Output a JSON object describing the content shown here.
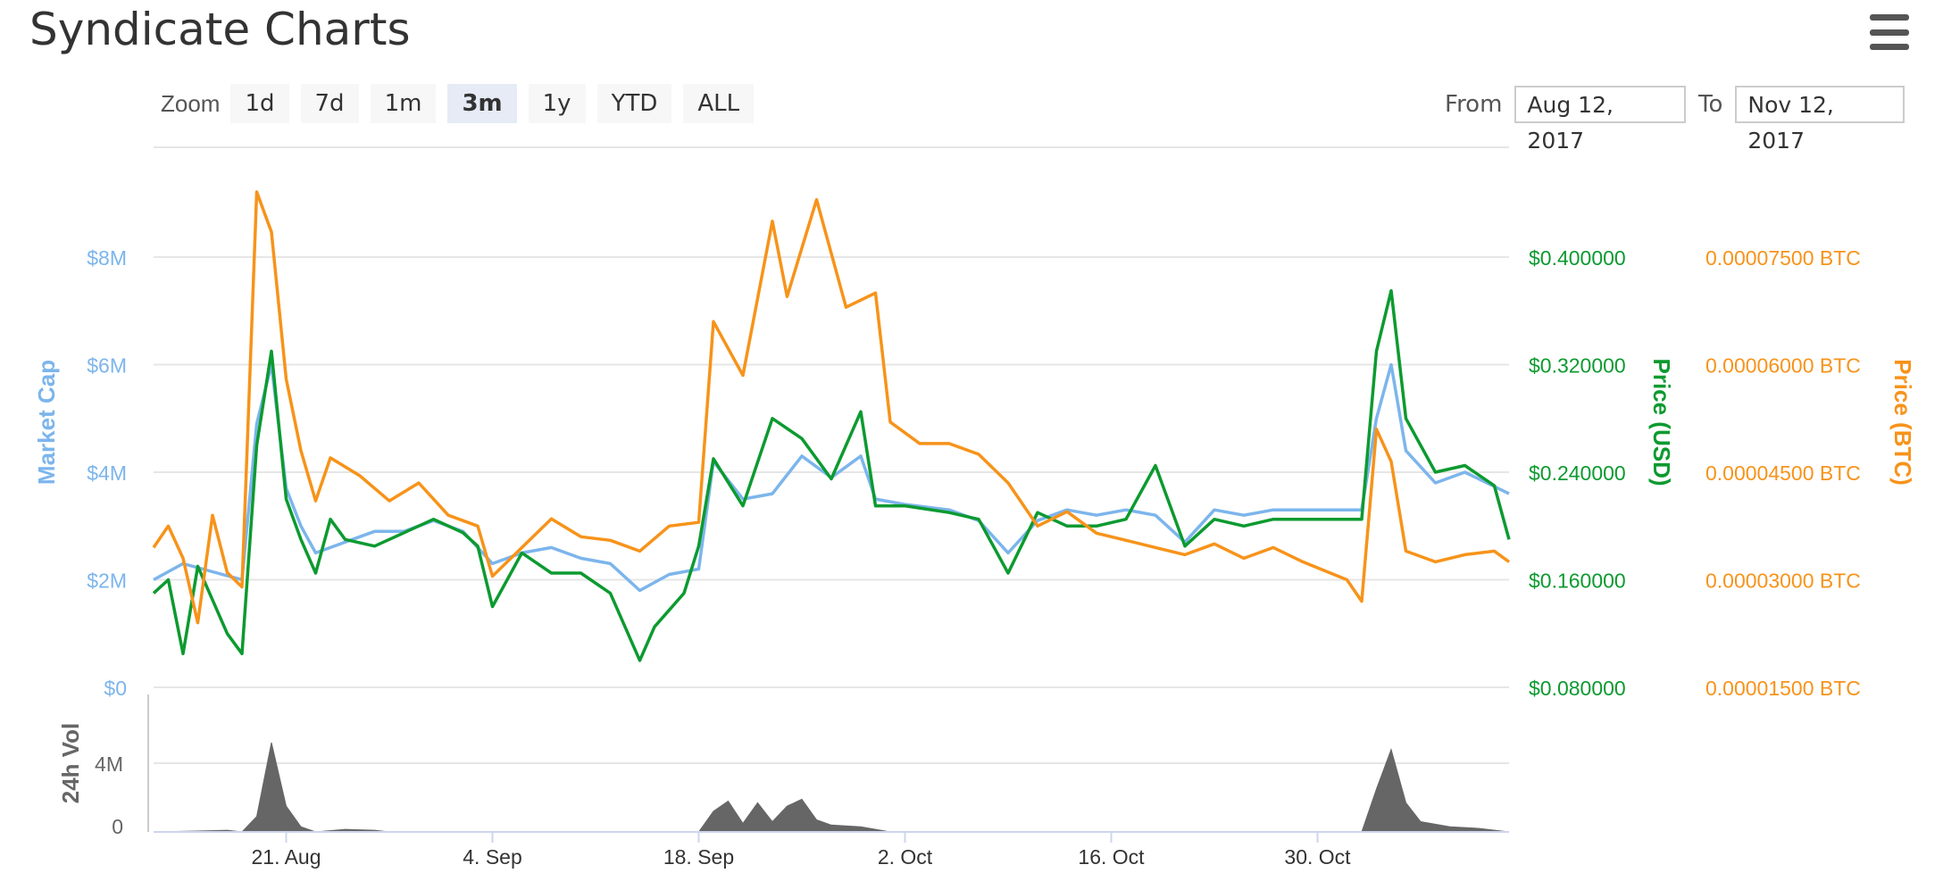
{
  "title": "Syndicate Charts",
  "menu_icon": "hamburger-menu-icon",
  "zoom": {
    "label": "Zoom",
    "buttons": [
      "1d",
      "7d",
      "1m",
      "3m",
      "1y",
      "YTD",
      "ALL"
    ],
    "active": "3m"
  },
  "range": {
    "from_label": "From",
    "from_value": "Aug 12, 2017",
    "to_label": "To",
    "to_value": "Nov 12, 2017"
  },
  "colors": {
    "market_cap": "#7cb5ec",
    "price_usd": "#0c9a30",
    "price_btc": "#f7931a",
    "volume": "#666666",
    "grid": "#e6e6e6"
  },
  "chart_data": {
    "type": "line",
    "x_start": "2017-08-12",
    "x_end": "2017-11-12",
    "x_tick_labels": [
      "21. Aug",
      "4. Sep",
      "18. Sep",
      "2. Oct",
      "16. Oct",
      "30. Oct"
    ],
    "x_tick_dates": [
      "2017-08-21",
      "2017-09-04",
      "2017-09-18",
      "2017-10-02",
      "2017-10-16",
      "2017-10-30"
    ],
    "axes": {
      "market_cap": {
        "title": "Market Cap",
        "ticks": [
          "$0",
          "$2M",
          "$4M",
          "$6M",
          "$8M"
        ],
        "range": [
          0,
          8000000
        ]
      },
      "price_usd": {
        "title": "Price (USD)",
        "ticks": [
          "$0.080000",
          "$0.160000",
          "$0.240000",
          "$0.320000",
          "$0.400000"
        ],
        "range": [
          0.08,
          0.4
        ]
      },
      "price_btc": {
        "title": "Price (BTC)",
        "ticks": [
          "0.00001500 BTC",
          "0.00003000 BTC",
          "0.00004500 BTC",
          "0.00006000 BTC",
          "0.00007500 BTC"
        ],
        "range": [
          1.5e-05,
          7.5e-05
        ]
      },
      "volume": {
        "title": "24h Vol",
        "ticks": [
          "0",
          "4M"
        ],
        "range": [
          0,
          4000000
        ]
      }
    },
    "series": [
      {
        "name": "Market Cap",
        "axis": "market_cap",
        "points": [
          [
            "2017-08-12",
            2000000
          ],
          [
            "2017-08-14",
            2300000
          ],
          [
            "2017-08-16",
            2150000
          ],
          [
            "2017-08-18",
            2000000
          ],
          [
            "2017-08-19",
            4900000
          ],
          [
            "2017-08-20",
            6000000
          ],
          [
            "2017-08-21",
            3700000
          ],
          [
            "2017-08-22",
            3000000
          ],
          [
            "2017-08-23",
            2500000
          ],
          [
            "2017-08-25",
            2700000
          ],
          [
            "2017-08-27",
            2900000
          ],
          [
            "2017-08-29",
            2900000
          ],
          [
            "2017-08-31",
            3100000
          ],
          [
            "2017-09-02",
            2900000
          ],
          [
            "2017-09-04",
            2300000
          ],
          [
            "2017-09-06",
            2500000
          ],
          [
            "2017-09-08",
            2600000
          ],
          [
            "2017-09-10",
            2400000
          ],
          [
            "2017-09-12",
            2300000
          ],
          [
            "2017-09-14",
            1800000
          ],
          [
            "2017-09-16",
            2100000
          ],
          [
            "2017-09-18",
            2200000
          ],
          [
            "2017-09-19",
            4200000
          ],
          [
            "2017-09-21",
            3500000
          ],
          [
            "2017-09-23",
            3600000
          ],
          [
            "2017-09-25",
            4300000
          ],
          [
            "2017-09-27",
            3900000
          ],
          [
            "2017-09-29",
            4300000
          ],
          [
            "2017-09-30",
            3500000
          ],
          [
            "2017-10-02",
            3400000
          ],
          [
            "2017-10-05",
            3300000
          ],
          [
            "2017-10-07",
            3100000
          ],
          [
            "2017-10-09",
            2500000
          ],
          [
            "2017-10-11",
            3100000
          ],
          [
            "2017-10-13",
            3300000
          ],
          [
            "2017-10-15",
            3200000
          ],
          [
            "2017-10-17",
            3300000
          ],
          [
            "2017-10-19",
            3200000
          ],
          [
            "2017-10-21",
            2700000
          ],
          [
            "2017-10-23",
            3300000
          ],
          [
            "2017-10-25",
            3200000
          ],
          [
            "2017-10-27",
            3300000
          ],
          [
            "2017-10-29",
            3300000
          ],
          [
            "2017-11-02",
            3300000
          ],
          [
            "2017-11-03",
            5000000
          ],
          [
            "2017-11-04",
            6000000
          ],
          [
            "2017-11-05",
            4400000
          ],
          [
            "2017-11-07",
            3800000
          ],
          [
            "2017-11-09",
            4000000
          ],
          [
            "2017-11-12",
            3600000
          ]
        ]
      },
      {
        "name": "Price (USD)",
        "axis": "price_usd",
        "points": [
          [
            "2017-08-12",
            0.15
          ],
          [
            "2017-08-13",
            0.16
          ],
          [
            "2017-08-14",
            0.105
          ],
          [
            "2017-08-15",
            0.17
          ],
          [
            "2017-08-16",
            0.145
          ],
          [
            "2017-08-17",
            0.12
          ],
          [
            "2017-08-18",
            0.105
          ],
          [
            "2017-08-19",
            0.26
          ],
          [
            "2017-08-20",
            0.33
          ],
          [
            "2017-08-21",
            0.22
          ],
          [
            "2017-08-22",
            0.19
          ],
          [
            "2017-08-23",
            0.165
          ],
          [
            "2017-08-24",
            0.205
          ],
          [
            "2017-08-25",
            0.19
          ],
          [
            "2017-08-27",
            0.185
          ],
          [
            "2017-08-29",
            0.195
          ],
          [
            "2017-08-31",
            0.205
          ],
          [
            "2017-09-02",
            0.195
          ],
          [
            "2017-09-03",
            0.185
          ],
          [
            "2017-09-04",
            0.14
          ],
          [
            "2017-09-06",
            0.18
          ],
          [
            "2017-09-08",
            0.165
          ],
          [
            "2017-09-10",
            0.165
          ],
          [
            "2017-09-12",
            0.15
          ],
          [
            "2017-09-14",
            0.1
          ],
          [
            "2017-09-15",
            0.125
          ],
          [
            "2017-09-17",
            0.15
          ],
          [
            "2017-09-18",
            0.185
          ],
          [
            "2017-09-19",
            0.25
          ],
          [
            "2017-09-21",
            0.215
          ],
          [
            "2017-09-23",
            0.28
          ],
          [
            "2017-09-25",
            0.265
          ],
          [
            "2017-09-27",
            0.235
          ],
          [
            "2017-09-29",
            0.285
          ],
          [
            "2017-09-30",
            0.215
          ],
          [
            "2017-10-02",
            0.215
          ],
          [
            "2017-10-05",
            0.21
          ],
          [
            "2017-10-07",
            0.205
          ],
          [
            "2017-10-09",
            0.165
          ],
          [
            "2017-10-11",
            0.21
          ],
          [
            "2017-10-13",
            0.2
          ],
          [
            "2017-10-15",
            0.2
          ],
          [
            "2017-10-17",
            0.205
          ],
          [
            "2017-10-19",
            0.245
          ],
          [
            "2017-10-21",
            0.185
          ],
          [
            "2017-10-23",
            0.205
          ],
          [
            "2017-10-25",
            0.2
          ],
          [
            "2017-10-27",
            0.205
          ],
          [
            "2017-10-29",
            0.205
          ],
          [
            "2017-11-02",
            0.205
          ],
          [
            "2017-11-03",
            0.33
          ],
          [
            "2017-11-04",
            0.375
          ],
          [
            "2017-11-05",
            0.28
          ],
          [
            "2017-11-07",
            0.24
          ],
          [
            "2017-11-09",
            0.245
          ],
          [
            "2017-11-11",
            0.23
          ],
          [
            "2017-11-12",
            0.19
          ]
        ]
      },
      {
        "name": "Price (BTC)",
        "axis": "price_btc",
        "points": [
          [
            "2017-08-12",
            3.45e-05
          ],
          [
            "2017-08-13",
            3.75e-05
          ],
          [
            "2017-08-14",
            3.3e-05
          ],
          [
            "2017-08-15",
            2.4e-05
          ],
          [
            "2017-08-16",
            3.9e-05
          ],
          [
            "2017-08-17",
            3.1e-05
          ],
          [
            "2017-08-18",
            2.9e-05
          ],
          [
            "2017-08-19",
            8.5e-05
          ],
          [
            "2017-08-20",
            7.85e-05
          ],
          [
            "2017-08-21",
            5.8e-05
          ],
          [
            "2017-08-22",
            4.8e-05
          ],
          [
            "2017-08-23",
            4.1e-05
          ],
          [
            "2017-08-24",
            4.7e-05
          ],
          [
            "2017-08-26",
            4.45e-05
          ],
          [
            "2017-08-28",
            4.1e-05
          ],
          [
            "2017-08-30",
            4.35e-05
          ],
          [
            "2017-09-01",
            3.9e-05
          ],
          [
            "2017-09-03",
            3.75e-05
          ],
          [
            "2017-09-04",
            3.05e-05
          ],
          [
            "2017-09-06",
            3.45e-05
          ],
          [
            "2017-09-08",
            3.85e-05
          ],
          [
            "2017-09-10",
            3.6e-05
          ],
          [
            "2017-09-12",
            3.55e-05
          ],
          [
            "2017-09-14",
            3.4e-05
          ],
          [
            "2017-09-16",
            3.75e-05
          ],
          [
            "2017-09-18",
            3.8e-05
          ],
          [
            "2017-09-19",
            6.6e-05
          ],
          [
            "2017-09-21",
            5.85e-05
          ],
          [
            "2017-09-23",
            8e-05
          ],
          [
            "2017-09-24",
            6.95e-05
          ],
          [
            "2017-09-26",
            8.3e-05
          ],
          [
            "2017-09-28",
            6.8e-05
          ],
          [
            "2017-09-30",
            7e-05
          ],
          [
            "2017-10-01",
            5.2e-05
          ],
          [
            "2017-10-03",
            4.9e-05
          ],
          [
            "2017-10-05",
            4.9e-05
          ],
          [
            "2017-10-07",
            4.75e-05
          ],
          [
            "2017-10-09",
            4.35e-05
          ],
          [
            "2017-10-11",
            3.75e-05
          ],
          [
            "2017-10-13",
            3.95e-05
          ],
          [
            "2017-10-15",
            3.65e-05
          ],
          [
            "2017-10-17",
            3.55e-05
          ],
          [
            "2017-10-19",
            3.45e-05
          ],
          [
            "2017-10-21",
            3.35e-05
          ],
          [
            "2017-10-23",
            3.5e-05
          ],
          [
            "2017-10-25",
            3.3e-05
          ],
          [
            "2017-10-27",
            3.45e-05
          ],
          [
            "2017-10-29",
            3.25e-05
          ],
          [
            "2017-11-01",
            3e-05
          ],
          [
            "2017-11-02",
            2.7e-05
          ],
          [
            "2017-11-03",
            5.1e-05
          ],
          [
            "2017-11-04",
            4.65e-05
          ],
          [
            "2017-11-05",
            3.4e-05
          ],
          [
            "2017-11-07",
            3.25e-05
          ],
          [
            "2017-11-09",
            3.35e-05
          ],
          [
            "2017-11-11",
            3.4e-05
          ],
          [
            "2017-11-12",
            3.25e-05
          ]
        ]
      },
      {
        "name": "24h Vol",
        "axis": "volume",
        "points": [
          [
            "2017-08-12",
            0
          ],
          [
            "2017-08-15",
            50000
          ],
          [
            "2017-08-17",
            100000
          ],
          [
            "2017-08-18",
            0
          ],
          [
            "2017-08-19",
            900000
          ],
          [
            "2017-08-20",
            5200000
          ],
          [
            "2017-08-21",
            1500000
          ],
          [
            "2017-08-22",
            300000
          ],
          [
            "2017-08-23",
            0
          ],
          [
            "2017-08-25",
            150000
          ],
          [
            "2017-08-27",
            100000
          ],
          [
            "2017-08-28",
            0
          ],
          [
            "2017-09-18",
            0
          ],
          [
            "2017-09-19",
            1200000
          ],
          [
            "2017-09-20",
            1800000
          ],
          [
            "2017-09-21",
            500000
          ],
          [
            "2017-09-22",
            1700000
          ],
          [
            "2017-09-23",
            600000
          ],
          [
            "2017-09-24",
            1500000
          ],
          [
            "2017-09-25",
            1900000
          ],
          [
            "2017-09-26",
            700000
          ],
          [
            "2017-09-27",
            400000
          ],
          [
            "2017-09-29",
            300000
          ],
          [
            "2017-10-01",
            0
          ],
          [
            "2017-11-02",
            0
          ],
          [
            "2017-11-03",
            2500000
          ],
          [
            "2017-11-04",
            4800000
          ],
          [
            "2017-11-05",
            1700000
          ],
          [
            "2017-11-06",
            600000
          ],
          [
            "2017-11-08",
            300000
          ],
          [
            "2017-11-10",
            200000
          ],
          [
            "2017-11-12",
            0
          ]
        ]
      }
    ]
  }
}
